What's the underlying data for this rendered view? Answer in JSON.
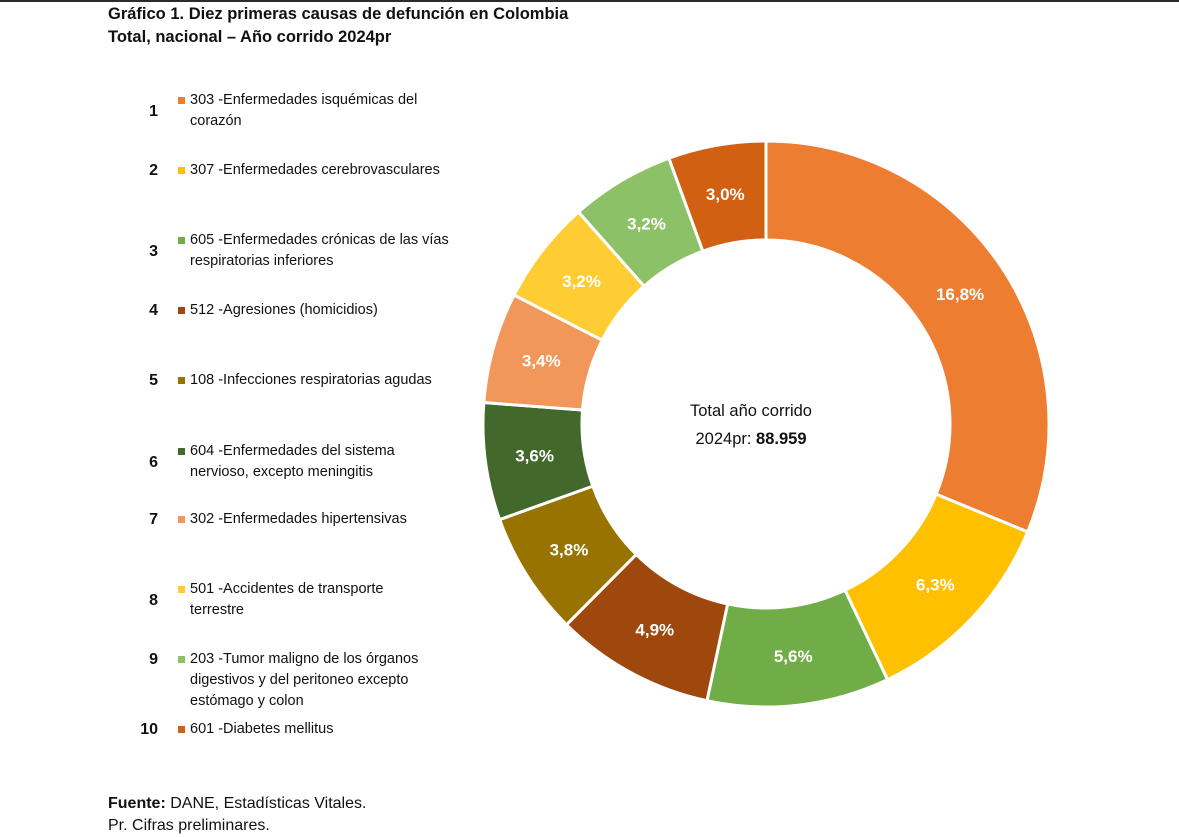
{
  "title": {
    "line1": "Gráfico 1. Diez primeras causas de defunción en Colombia",
    "line2": "Total, nacional – Año corrido 2024pr"
  },
  "footer": {
    "source_label": "Fuente:",
    "source_text": " DANE, Estadísticas Vitales.",
    "note": "Pr. Cifras preliminares."
  },
  "chart_data": {
    "type": "pie",
    "variant": "donut",
    "center_label": {
      "line1": "Total año corrido",
      "line2_prefix": "2024pr: ",
      "line2_value": "88.959"
    },
    "legend_position": "left",
    "categories": [
      {
        "rank": "1",
        "label_lines": [
          "303 -Enfermedades isquémicas del",
          "corazón"
        ],
        "value": 16.8,
        "display": "16,8%",
        "color": "#ED7D31"
      },
      {
        "rank": "2",
        "label_lines": [
          "307 -Enfermedades cerebrovasculares"
        ],
        "value": 6.3,
        "display": "6,3%",
        "color": "#FFC000"
      },
      {
        "rank": "3",
        "label_lines": [
          "605 -Enfermedades crónicas de las vías",
          "respiratorias inferiores"
        ],
        "value": 5.6,
        "display": "5,6%",
        "color": "#70AD47"
      },
      {
        "rank": "4",
        "label_lines": [
          "512 -Agresiones (homicidios)"
        ],
        "value": 4.9,
        "display": "4,9%",
        "color": "#9E480E"
      },
      {
        "rank": "5",
        "label_lines": [
          "108 -Infecciones respiratorias agudas"
        ],
        "value": 3.8,
        "display": "3,8%",
        "color": "#997300"
      },
      {
        "rank": "6",
        "label_lines": [
          "604 -Enfermedades del sistema",
          "nervioso, excepto meningitis"
        ],
        "value": 3.6,
        "display": "3,6%",
        "color": "#43682B"
      },
      {
        "rank": "7",
        "label_lines": [
          "302 -Enfermedades hipertensivas"
        ],
        "value": 3.4,
        "display": "3,4%",
        "color": "#F1975A"
      },
      {
        "rank": "8",
        "label_lines": [
          "501 -Accidentes de transporte",
          "terrestre"
        ],
        "value": 3.2,
        "display": "3,2%",
        "color": "#FFCD33"
      },
      {
        "rank": "9",
        "label_lines": [
          "203 -Tumor maligno de los órganos",
          "digestivos y del peritoneo excepto",
          "estómago y colon"
        ],
        "value": 3.2,
        "display": "3,2%",
        "color": "#8CC168"
      },
      {
        "rank": "10",
        "label_lines": [
          "601 -Diabetes mellitus"
        ],
        "value": 3.0,
        "display": "3,0%",
        "color": "#D26012"
      }
    ]
  }
}
